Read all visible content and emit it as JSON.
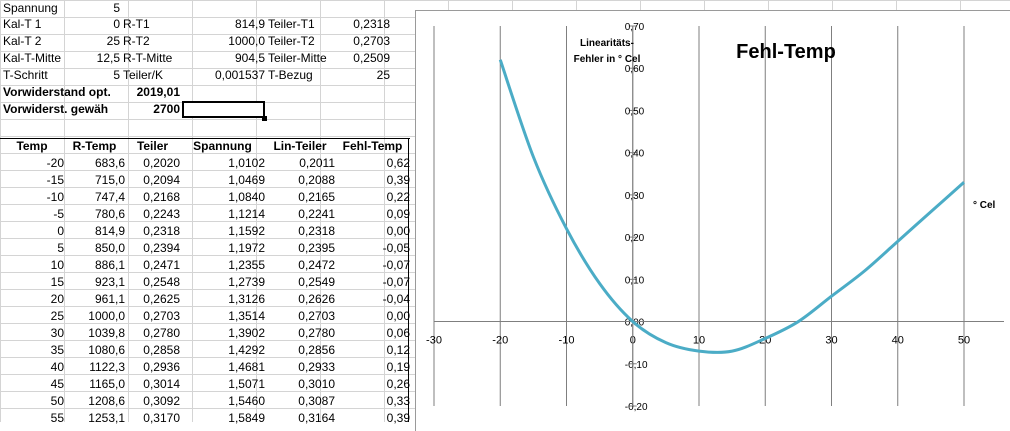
{
  "params": [
    {
      "label": "Spannung",
      "val": "5"
    },
    {
      "label": "Kal-T 1",
      "val": "0",
      "label2": "R-T1",
      "val2": "814,9",
      "label3": "Teiler-T1",
      "val3": "0,2318"
    },
    {
      "label": "Kal-T 2",
      "val": "25",
      "label2": "R-T2",
      "val2": "1000,0",
      "label3": "Teiler-T2",
      "val3": "0,2703"
    },
    {
      "label": "Kal-T-Mitte",
      "val": "12,5",
      "label2": "R-T-Mitte",
      "val2": "904,5",
      "label3": "Teiler-Mitte",
      "val3": "0,2509"
    },
    {
      "label": "T-Schritt",
      "val": "5",
      "label2": "Teiler/K",
      "val2": "0,001537",
      "label3": "T-Bezug",
      "val3": "25"
    }
  ],
  "vorwiderstand": {
    "label": "Vorwiderstand opt.",
    "val": "2019,01"
  },
  "vorwiderst_gew": {
    "label": "Vorwiderst. gewäh",
    "val": "2700"
  },
  "table": {
    "headers": [
      "Temp",
      "R-Temp",
      "Teiler",
      "Spannung",
      "Lin-Teiler",
      "Fehl-Temp"
    ],
    "rows": [
      [
        "-20",
        "683,6",
        "0,2020",
        "1,0102",
        "0,2011",
        "0,62"
      ],
      [
        "-15",
        "715,0",
        "0,2094",
        "1,0469",
        "0,2088",
        "0,39"
      ],
      [
        "-10",
        "747,4",
        "0,2168",
        "1,0840",
        "0,2165",
        "0,22"
      ],
      [
        "-5",
        "780,6",
        "0,2243",
        "1,1214",
        "0,2241",
        "0,09"
      ],
      [
        "0",
        "814,9",
        "0,2318",
        "1,1592",
        "0,2318",
        "0,00"
      ],
      [
        "5",
        "850,0",
        "0,2394",
        "1,1972",
        "0,2395",
        "-0,05"
      ],
      [
        "10",
        "886,1",
        "0,2471",
        "1,2355",
        "0,2472",
        "-0,07"
      ],
      [
        "15",
        "923,1",
        "0,2548",
        "1,2739",
        "0,2549",
        "-0,07"
      ],
      [
        "20",
        "961,1",
        "0,2625",
        "1,3126",
        "0,2626",
        "-0,04"
      ],
      [
        "25",
        "1000,0",
        "0,2703",
        "1,3514",
        "0,2703",
        "0,00"
      ],
      [
        "30",
        "1039,8",
        "0,2780",
        "1,3902",
        "0,2780",
        "0,06"
      ],
      [
        "35",
        "1080,6",
        "0,2858",
        "1,4292",
        "0,2856",
        "0,12"
      ],
      [
        "40",
        "1122,3",
        "0,2936",
        "1,4681",
        "0,2933",
        "0,19"
      ],
      [
        "45",
        "1165,0",
        "0,3014",
        "1,5071",
        "0,3010",
        "0,26"
      ],
      [
        "50",
        "1208,6",
        "0,3092",
        "1,5460",
        "0,3087",
        "0,33"
      ],
      [
        "55",
        "1253,1",
        "0,3170",
        "1,5849",
        "0,3164",
        "0,39"
      ]
    ]
  },
  "chart_data": {
    "type": "line",
    "title": "Fehl-Temp",
    "ylabel_line1": "Linearitäts-",
    "ylabel_line2": "Fehler in ° Cel",
    "xlabel": "° Cel",
    "xlim": [
      -30,
      50
    ],
    "ylim": [
      -0.2,
      0.7
    ],
    "xticks": [
      "-30",
      "-20",
      "-10",
      "0",
      "10",
      "20",
      "30",
      "40",
      "50"
    ],
    "yticks": [
      "-0,20",
      "-0,10",
      "0,00",
      "0,10",
      "0,20",
      "0,30",
      "0,40",
      "0,50",
      "0,60",
      "0,70"
    ],
    "line_color": "#4bacc6",
    "grid": true,
    "x": [
      -20,
      -15,
      -10,
      -5,
      0,
      5,
      10,
      15,
      20,
      25,
      30,
      35,
      40,
      45,
      50
    ],
    "values": [
      0.62,
      0.39,
      0.22,
      0.09,
      0.0,
      -0.05,
      -0.07,
      -0.07,
      -0.04,
      0.0,
      0.06,
      0.12,
      0.19,
      0.26,
      0.33
    ]
  }
}
